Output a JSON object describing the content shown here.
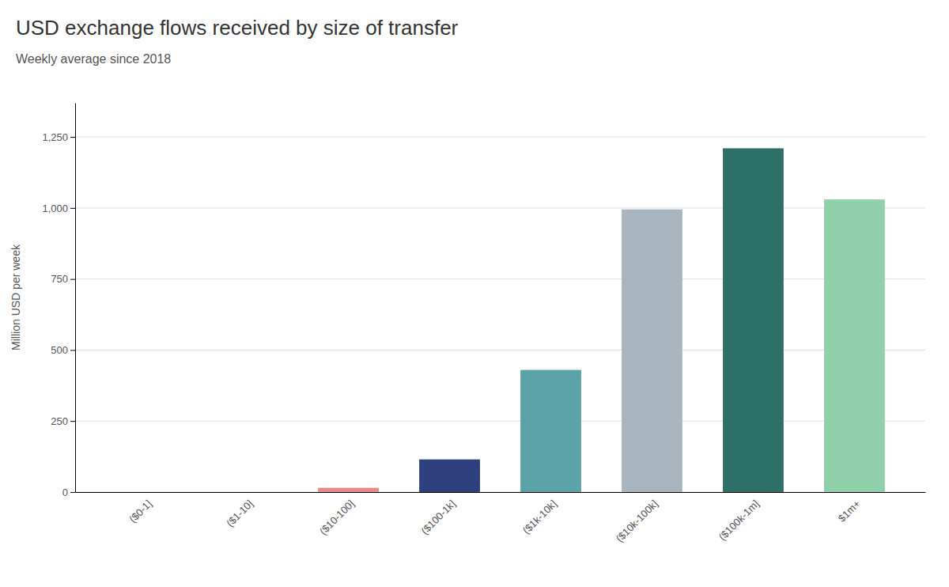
{
  "chart_data": {
    "type": "bar",
    "title": "USD exchange flows received by size of transfer",
    "subtitle": "Weekly average since 2018",
    "ylabel": "Million USD per week",
    "categories": [
      "($0-1]",
      "($1-10]",
      "($10-100]",
      "($100-1k]",
      "($1k-10k]",
      "($10k-100k]",
      "($100k-1m]",
      "$1m+"
    ],
    "values": [
      0.05,
      0.05,
      15,
      115,
      430,
      995,
      1210,
      1030
    ],
    "colors": [
      "#f08080",
      "#f08080",
      "#e88a8a",
      "#2d3f7c",
      "#5ba3a8",
      "#a8b4be",
      "#2d7068",
      "#8fcfaa"
    ],
    "ylim": [
      0,
      1370
    ],
    "yticks": [
      0,
      250,
      500,
      750,
      {
        "value": 1000,
        "label": "1,000"
      },
      {
        "value": 1250,
        "label": "1,250"
      }
    ],
    "grid": true
  }
}
